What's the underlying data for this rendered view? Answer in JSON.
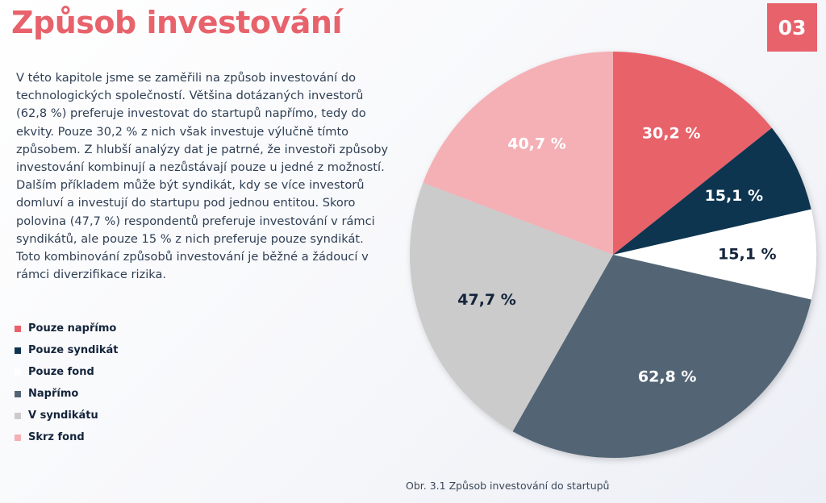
{
  "header": {
    "title": "Způsob investování",
    "chapter": "03"
  },
  "body_lines": [
    "V této kapitole jsme se zaměřili na způsob investování do",
    "technologických společností. Většina dotázaných investorů",
    "(62,8 %) preferuje investovat do startupů napřímo, tedy do",
    "ekvity. Pouze 30,2 % z nich však investuje výlučně tímto",
    "způsobem. Z hlubší analýzy dat je patrné, že investoři způsoby",
    "investování kombinují a nezůstávají pouze u jedné z možností.",
    "Dalším příkladem může být syndikát, kdy se více investorů",
    "domluví a investují do startupu pod jednou entitou. Skoro",
    "polovina (47,7 %) respondentů preferuje investování v rámci",
    "syndikátů, ale pouze 15 % z nich preferuje pouze syndikát.",
    "Toto kombinování způsobů investování je běžné a žádoucí v",
    "rámci diverzifikace rizika."
  ],
  "caption": "Obr. 3.1 Způsob investování do startupů",
  "chart_data": {
    "type": "pie",
    "title": "",
    "legend_position": "left",
    "slices": [
      {
        "name": "Pouze napřímo",
        "value": 30.2,
        "label": "30,2 %",
        "color": "#e8626b",
        "label_color": "#ffffff"
      },
      {
        "name": "Pouze syndikát",
        "value": 15.1,
        "label": "15,1 %",
        "color": "#0e3550",
        "label_color": "#ffffff"
      },
      {
        "name": "Pouze fond",
        "value": 15.1,
        "label": "15,1 %",
        "color": "#ffffff",
        "label_color": "#13243b"
      },
      {
        "name": "Napřímo",
        "value": 62.8,
        "label": "62,8 %",
        "color": "#536574",
        "label_color": "#ffffff"
      },
      {
        "name": "V syndikátu",
        "value": 47.7,
        "label": "47,7 %",
        "color": "#cbcbcb",
        "label_color": "#13243b"
      },
      {
        "name": "Skrz fond",
        "value": 40.7,
        "label": "40,7 %",
        "color": "#f4b0b5",
        "label_color": "#ffffff"
      }
    ]
  }
}
